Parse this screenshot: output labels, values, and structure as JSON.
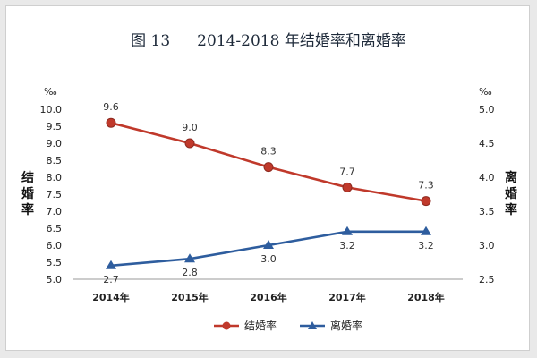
{
  "header": {
    "figure_number": "图 13",
    "title": "2014-2018 年结婚率和离婚率"
  },
  "chart_data": {
    "type": "line",
    "categories": [
      "2014年",
      "2015年",
      "2016年",
      "2017年",
      "2018年"
    ],
    "left_axis": {
      "unit": "‰",
      "label": "结婚率",
      "ticks": [
        "10.0",
        "9.5",
        "9.0",
        "8.5",
        "8.0",
        "7.5",
        "7.0",
        "6.5",
        "6.0",
        "5.5",
        "5.0"
      ],
      "ylim": [
        5.0,
        10.0
      ]
    },
    "right_axis": {
      "unit": "‰",
      "label": "离婚率",
      "ticks": [
        "5.0",
        "4.5",
        "4.0",
        "3.5",
        "3.0",
        "2.5"
      ],
      "ylim": [
        2.5,
        5.0
      ]
    },
    "series": [
      {
        "name": "结婚率",
        "axis": "left",
        "values": [
          9.6,
          9.0,
          8.3,
          7.7,
          7.3
        ],
        "labels": [
          "9.6",
          "9.0",
          "8.3",
          "7.7",
          "7.3"
        ],
        "color": "#c0392b",
        "marker": "circle"
      },
      {
        "name": "离婚率",
        "axis": "right",
        "values": [
          2.7,
          2.8,
          3.0,
          3.2,
          3.2
        ],
        "labels": [
          "2.7",
          "2.8",
          "3.0",
          "3.2",
          "3.2"
        ],
        "color": "#2e5d9e",
        "marker": "triangle"
      }
    ],
    "legend": "bottom-center",
    "grid": false
  }
}
